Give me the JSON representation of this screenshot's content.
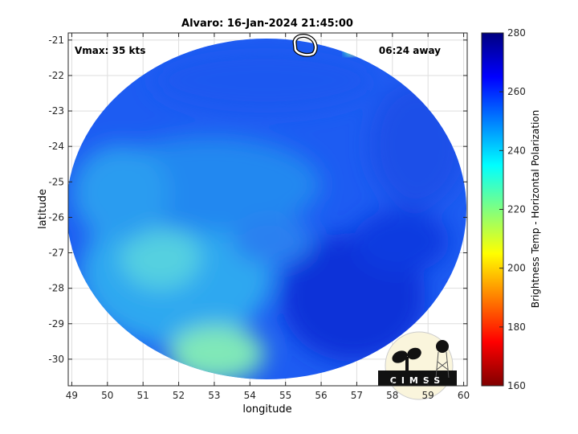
{
  "title": "Alvaro: 16-Jan-2024 21:45:00",
  "annotations": {
    "vmax": "Vmax: 35 kts",
    "time_away": "06:24 away"
  },
  "xaxis": {
    "label": "longitude",
    "ticks": [
      "49",
      "50",
      "51",
      "52",
      "53",
      "54",
      "55",
      "56",
      "57",
      "58",
      "59",
      "60"
    ],
    "range": [
      48.9,
      60.1
    ]
  },
  "yaxis": {
    "label": "latitude",
    "ticks": [
      "-21",
      "-22",
      "-23",
      "-24",
      "-25",
      "-26",
      "-27",
      "-28",
      "-29",
      "-30"
    ],
    "range": [
      -30.75,
      -20.8
    ]
  },
  "colorbar": {
    "label": "Brightness Temp - Horizontal Polarization",
    "ticks": [
      "280",
      "260",
      "240",
      "220",
      "200",
      "180",
      "160"
    ],
    "range": [
      160,
      280
    ],
    "colormap": "jet"
  },
  "logo": {
    "text": "CIMSS"
  },
  "chart_data": {
    "type": "heatmap",
    "title": "Alvaro: 16-Jan-2024 21:45:00",
    "xlabel": "longitude",
    "ylabel": "latitude",
    "xlim": [
      48.9,
      60.1
    ],
    "ylim": [
      -30.75,
      -20.8
    ],
    "clim": [
      160,
      280
    ],
    "grid": true,
    "colors": {
      "background_field": "#1a4ff0",
      "warm_region": "#5fd8e8",
      "hot_spot": "#e83010",
      "contour": "#ffffff"
    }
  }
}
